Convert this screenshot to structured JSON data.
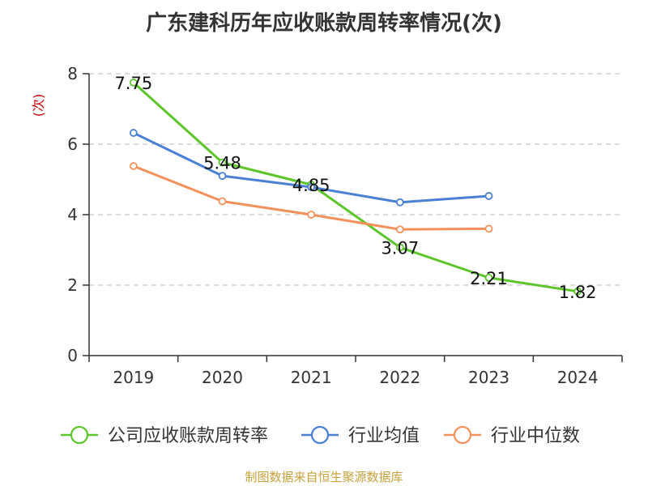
{
  "title": "广东建科历年应收账款周转率情况(次)",
  "source": "制图数据来自恒生聚源数据库",
  "chart_data": {
    "type": "line",
    "title": "广东建科历年应收账款周转率情况(次)",
    "ylabel": "(次)",
    "xlabel": "",
    "categories": [
      "2019",
      "2020",
      "2021",
      "2022",
      "2023",
      "2024"
    ],
    "ylim": [
      0,
      8
    ],
    "yticks": [
      0,
      2,
      4,
      6,
      8
    ],
    "grid": true,
    "legend_position": "bottom",
    "series": [
      {
        "name": "公司应收账款周转率",
        "color": "#5cc52a",
        "values": [
          7.75,
          5.48,
          4.85,
          3.07,
          2.21,
          1.82
        ],
        "labels": [
          "7.75",
          "5.48",
          "4.85",
          "3.07",
          "2.21",
          "1.82"
        ]
      },
      {
        "name": "行业均值",
        "color": "#4a7fd6",
        "values": [
          6.32,
          5.1,
          4.78,
          4.35,
          4.53,
          null
        ]
      },
      {
        "name": "行业中位数",
        "color": "#f4915a",
        "values": [
          5.38,
          4.38,
          4.0,
          3.58,
          3.6,
          null
        ]
      }
    ]
  }
}
